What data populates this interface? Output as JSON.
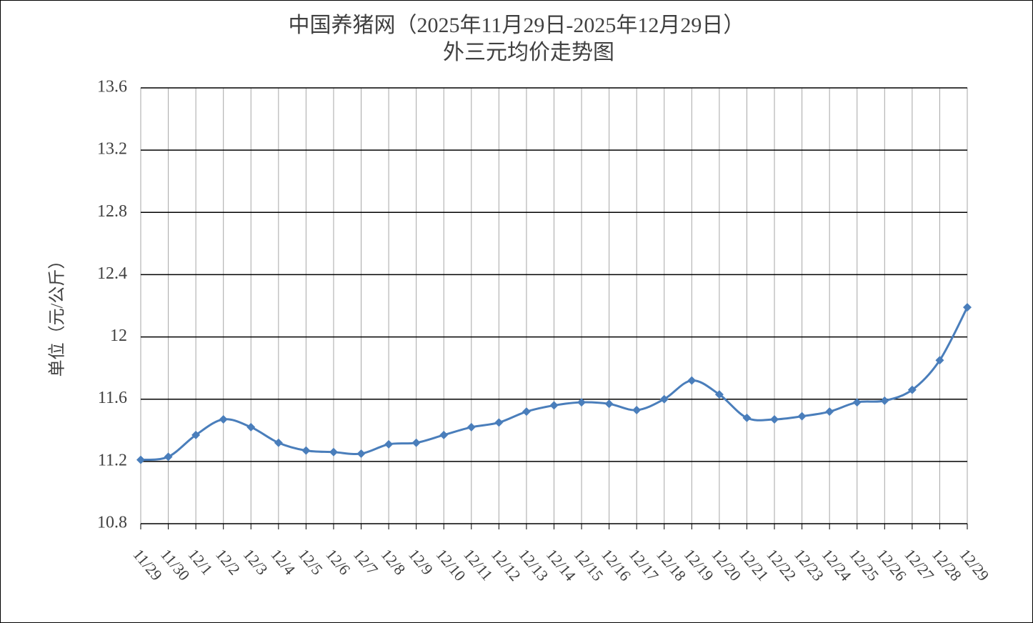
{
  "chart_data": {
    "type": "line",
    "title": "中国养猪网（2025年11月29日-2025年12月29日）",
    "subtitle": "外三元均价走势图",
    "y_label": "单位（元/公斤）",
    "categories": [
      "11/29",
      "11/30",
      "12/1",
      "12/2",
      "12/3",
      "12/4",
      "12/5",
      "12/6",
      "12/7",
      "12/8",
      "12/9",
      "12/10",
      "12/11",
      "12/12",
      "12/13",
      "12/14",
      "12/15",
      "12/16",
      "12/17",
      "12/18",
      "12/19",
      "12/20",
      "12/21",
      "12/22",
      "12/23",
      "12/24",
      "12/25",
      "12/26",
      "12/27",
      "12/28",
      "12/29"
    ],
    "series": [
      {
        "color": "#4a7ebb",
        "values": [
          11.21,
          11.23,
          11.37,
          11.47,
          11.42,
          11.32,
          11.27,
          11.26,
          11.25,
          11.31,
          11.32,
          11.37,
          11.42,
          11.45,
          11.52,
          11.56,
          11.58,
          11.57,
          11.53,
          11.6,
          11.72,
          11.63,
          11.48,
          11.47,
          11.49,
          11.52,
          11.58,
          11.59,
          11.66,
          11.85,
          12.19
        ]
      }
    ],
    "ylim": [
      10.8,
      13.6
    ],
    "yticks": [
      10.8,
      11.2,
      11.6,
      12,
      12.4,
      12.8,
      13.2,
      13.6
    ],
    "grid": true
  }
}
